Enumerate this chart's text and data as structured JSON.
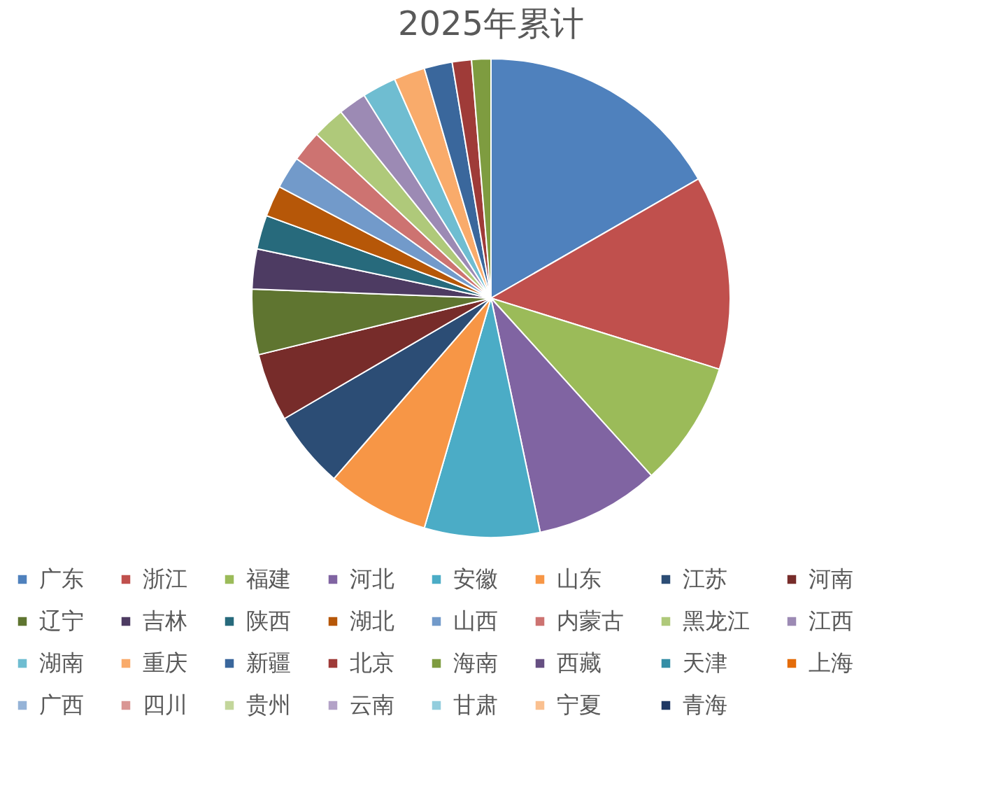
{
  "chart_data": {
    "type": "pie",
    "title": "2025年累计",
    "categories": [
      "广东",
      "浙江",
      "福建",
      "河北",
      "安徽",
      "山东",
      "江苏",
      "河南",
      "辽宁",
      "吉林",
      "陕西",
      "湖北",
      "山西",
      "内蒙古",
      "黑龙江",
      "江西",
      "湖南",
      "重庆",
      "新疆",
      "北京",
      "海南",
      "西藏",
      "天津",
      "上海",
      "广西",
      "四川",
      "贵州",
      "云南",
      "甘肃",
      "宁夏",
      "青海"
    ],
    "values": [
      16.7,
      13.1,
      8.5,
      8.4,
      7.8,
      6.9,
      5.2,
      4.6,
      4.4,
      2.7,
      2.3,
      2.1,
      2.2,
      2.1,
      2.2,
      1.9,
      2.3,
      2.1,
      1.9,
      1.3,
      1.3,
      0,
      0,
      0,
      0,
      0,
      0,
      0,
      0,
      0,
      0
    ],
    "colors": [
      "#4f81bd",
      "#c0504d",
      "#9bbb59",
      "#8064a2",
      "#4bacc6",
      "#f79646",
      "#2c4d75",
      "#772c2a",
      "#5f7530",
      "#4d3b62",
      "#276a7c",
      "#b65708",
      "#729aca",
      "#cd7371",
      "#afc97a",
      "#9c8ab4",
      "#6fbdd1",
      "#f9ab6b",
      "#3a679c",
      "#9f3b38",
      "#7e9c40",
      "#664f82",
      "#358ea6",
      "#e46c0a",
      "#95b3d7",
      "#d99694",
      "#c3d69b",
      "#b3a2c7",
      "#93cddd",
      "#fac090",
      "#1f3864"
    ],
    "legend": "bottom"
  }
}
